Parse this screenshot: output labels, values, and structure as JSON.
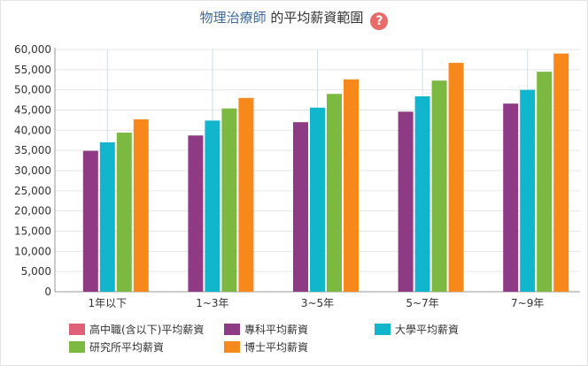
{
  "header": {
    "title_link": "物理治療師",
    "title_rest": " 的平均薪資範圍",
    "help_icon": "question-circle-icon",
    "help_symbol": "?"
  },
  "chart_data": {
    "type": "bar",
    "categories": [
      "1年以下",
      "1~3年",
      "3~5年",
      "5~7年",
      "7~9年"
    ],
    "ylim": [
      0,
      60000
    ],
    "yticks": [
      "0",
      "5,000",
      "10,000",
      "15,000",
      "20,000",
      "25,000",
      "30,000",
      "35,000",
      "40,000",
      "45,000",
      "50,000",
      "55,000",
      "60,000"
    ],
    "grid": true,
    "legend_position": "bottom",
    "series": [
      {
        "name": "高中職(含以下)平均薪資",
        "color": "#e0607a",
        "values": [
          null,
          null,
          null,
          null,
          null
        ]
      },
      {
        "name": "專科平均薪資",
        "color": "#8e3a85",
        "values": [
          34900,
          38700,
          42000,
          44600,
          46600
        ]
      },
      {
        "name": "大學平均薪資",
        "color": "#11b5cc",
        "values": [
          37000,
          42400,
          45600,
          48400,
          50000
        ]
      },
      {
        "name": "研究所平均薪資",
        "color": "#7bb943",
        "values": [
          39400,
          45400,
          49000,
          52300,
          54500
        ]
      },
      {
        "name": "博士平均薪資",
        "color": "#f7881c",
        "values": [
          42700,
          48000,
          52600,
          56700,
          59000
        ]
      }
    ]
  }
}
